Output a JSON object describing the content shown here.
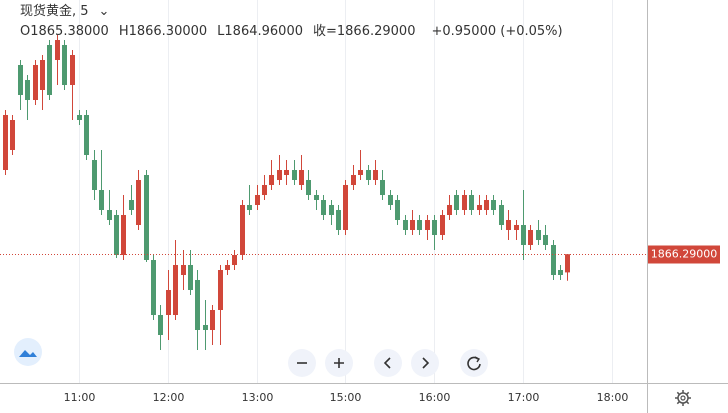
{
  "chart_data": {
    "type": "candlestick",
    "symbol": "现货黄金, 5",
    "ohlc_labels": [
      "O1865.38000",
      "H1866.30000",
      "L1864.96000",
      "收=1866.29000",
      "+0.95000 (+0.05%)"
    ],
    "up_color": "#d1473a",
    "down_color": "#4e9a70",
    "last_price": {
      "value": 1866.29,
      "label": "1866.29000"
    },
    "ylim": [
      1859.85,
      1879
    ],
    "xlim": [
      -0.68,
      86.76
    ],
    "xticks": [
      {
        "value": 10,
        "label": "11:00"
      },
      {
        "value": 22,
        "label": "12:00"
      },
      {
        "value": 34,
        "label": "13:00"
      },
      {
        "value": 46,
        "label": "15:00"
      },
      {
        "value": 58,
        "label": "16:00"
      },
      {
        "value": 70,
        "label": "17:00"
      },
      {
        "value": 82,
        "label": "18:00"
      }
    ],
    "grid": true,
    "open": [
      1870.5,
      1871.5,
      1875.75,
      1875,
      1874,
      1874.5,
      1876.75,
      1876,
      1876.75,
      1874.75,
      1873.25,
      1873.25,
      1871,
      1869.5,
      1868.5,
      1868.25,
      1866.25,
      1869,
      1867.75,
      1870.25,
      1866,
      1863.25,
      1863.25,
      1863.25,
      1865.25,
      1865.75,
      1865,
      1862.75,
      1862.5,
      1863.5,
      1865.5,
      1865.75,
      1866.25,
      1868.75,
      1868.75,
      1869.25,
      1869.75,
      1870,
      1870.25,
      1870.5,
      1869.75,
      1870,
      1869.25,
      1869,
      1868.75,
      1868.5,
      1867.5,
      1869.75,
      1870.25,
      1870.5,
      1870,
      1870,
      1869.25,
      1869,
      1868,
      1867.5,
      1868,
      1867.5,
      1868,
      1867.25,
      1868.25,
      1869.25,
      1868.5,
      1869.25,
      1868.5,
      1868.5,
      1869,
      1868.75,
      1867.5,
      1867.5,
      1867.75,
      1866.75,
      1867.5,
      1867.25,
      1866.75,
      1865.5,
      1865.38
    ],
    "high": [
      1873.5,
      1873.25,
      1876,
      1875.25,
      1876,
      1876.25,
      1877,
      1877.25,
      1877,
      1876.5,
      1873.5,
      1873.5,
      1871.5,
      1871.5,
      1869.5,
      1868.5,
      1869.25,
      1869.75,
      1870.5,
      1870.5,
      1866.25,
      1863.75,
      1865.5,
      1867,
      1866.5,
      1866.5,
      1865.5,
      1864,
      1863.75,
      1865.75,
      1866,
      1866.5,
      1869,
      1869.75,
      1869.75,
      1870.25,
      1871,
      1871.25,
      1871,
      1871,
      1871.25,
      1870.5,
      1869.5,
      1869.25,
      1869,
      1868.75,
      1870,
      1870.75,
      1871.5,
      1870.75,
      1871,
      1870.5,
      1869.5,
      1869.25,
      1868.25,
      1868.5,
      1868.25,
      1868.25,
      1868.25,
      1868.5,
      1869.25,
      1869.5,
      1869.5,
      1869.5,
      1869.25,
      1869.25,
      1869.25,
      1869,
      1868.5,
      1868,
      1869.5,
      1867.75,
      1868,
      1867.75,
      1867,
      1865.75,
      1866.3
    ],
    "low": [
      1870.25,
      1871.25,
      1873.5,
      1873,
      1873.75,
      1873.5,
      1874,
      1874.75,
      1874.5,
      1873,
      1872.75,
      1871,
      1869,
      1868.25,
      1867.75,
      1866.1,
      1866,
      1868.25,
      1867.5,
      1865.9,
      1863,
      1861.5,
      1862,
      1863,
      1864.5,
      1864.25,
      1861.5,
      1861.5,
      1861.75,
      1861.75,
      1865.25,
      1865.5,
      1866,
      1868.25,
      1868.5,
      1869,
      1869.5,
      1869.75,
      1869.75,
      1869.75,
      1869.5,
      1869,
      1868.5,
      1868,
      1867.75,
      1867.25,
      1867.25,
      1869.5,
      1870,
      1869.75,
      1869.75,
      1869,
      1868.5,
      1867.75,
      1867.25,
      1867.25,
      1867.25,
      1867,
      1866.5,
      1867,
      1868,
      1868.25,
      1868.25,
      1868.25,
      1868.25,
      1868.25,
      1868.25,
      1867.5,
      1867,
      1867,
      1866,
      1866.5,
      1866.75,
      1866.5,
      1865,
      1865,
      1864.96
    ],
    "close": [
      1873.25,
      1873,
      1874.25,
      1874,
      1875.75,
      1876,
      1874.25,
      1877,
      1874.75,
      1876.25,
      1873,
      1871.25,
      1869.5,
      1868.5,
      1868,
      1866.25,
      1868.25,
      1868.5,
      1870,
      1866,
      1863.25,
      1862.25,
      1864.5,
      1865.75,
      1865.75,
      1864.5,
      1862.5,
      1862.5,
      1863.5,
      1865.5,
      1865.75,
      1866.25,
      1868.75,
      1868.5,
      1869.25,
      1869.75,
      1870.25,
      1870.5,
      1870.5,
      1870,
      1870.5,
      1869.25,
      1869,
      1868.25,
      1868.25,
      1867.5,
      1869.75,
      1870.25,
      1870.5,
      1870,
      1870.5,
      1869.25,
      1868.75,
      1868,
      1867.5,
      1868,
      1867.5,
      1868,
      1867.25,
      1868.25,
      1868.75,
      1868.5,
      1869.25,
      1868.5,
      1868.75,
      1869,
      1868.5,
      1867.75,
      1868,
      1867.75,
      1866.75,
      1867.5,
      1867,
      1866.75,
      1865.25,
      1865.25,
      1866.29
    ]
  }
}
